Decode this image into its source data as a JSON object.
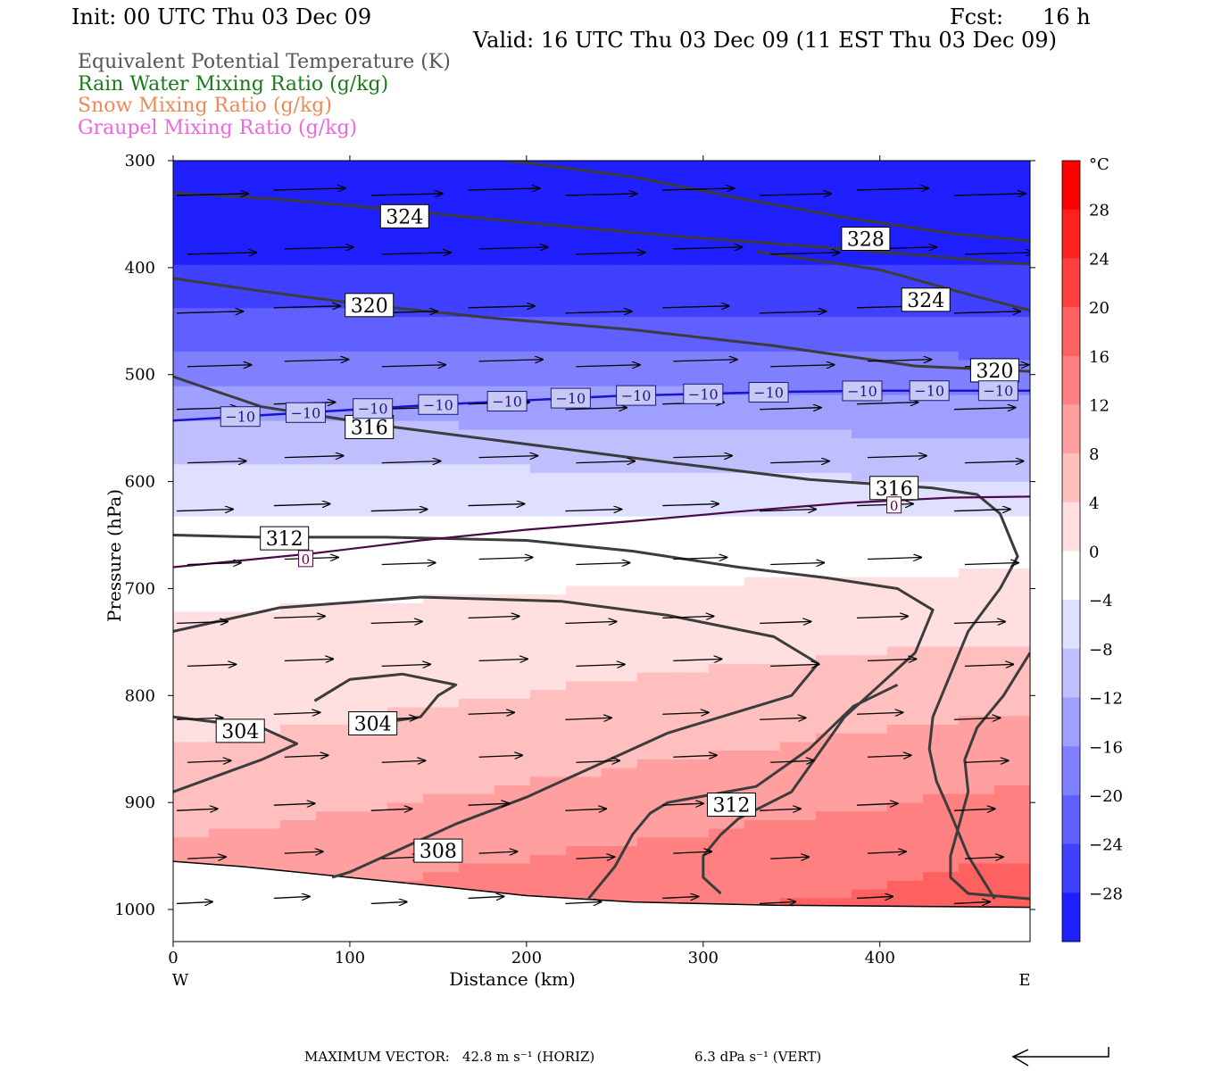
{
  "header": {
    "init": "Init: 00 UTC Thu 03 Dec 09",
    "fcst_label": "Fcst:",
    "fcst_value": "16 h",
    "valid": "Valid: 16 UTC Thu 03 Dec 09 (11 EST Thu 03 Dec 09)"
  },
  "fields": [
    {
      "name": "Equivalent Potential Temperature (K)",
      "color": "#555555"
    },
    {
      "name": "Rain Water Mixing Ratio (g/kg)",
      "color": "#1a7a1a"
    },
    {
      "name": "Snow Mixing Ratio (g/kg)",
      "color": "#ee8a55"
    },
    {
      "name": "Graupel Mixing Ratio (g/kg)",
      "color": "#ee66dd"
    }
  ],
  "chart_data": {
    "type": "cross-section",
    "xlabel": "Distance (km)",
    "ylabel": "Pressure (hPa)",
    "xlim": [
      0,
      485
    ],
    "ylim": [
      1030,
      300
    ],
    "x_ticks": [
      "0",
      "100",
      "200",
      "300",
      "400"
    ],
    "x_tick_values": [
      0,
      100,
      200,
      300,
      400
    ],
    "y_ticks": [
      "300",
      "400",
      "500",
      "600",
      "700",
      "800",
      "900",
      "1000"
    ],
    "y_tick_values": [
      300,
      400,
      500,
      600,
      700,
      800,
      900,
      1000
    ],
    "west_label": "W",
    "east_label": "E",
    "colorbar": {
      "unit": "°C",
      "labels": [
        "28",
        "24",
        "20",
        "16",
        "12",
        "8",
        "4",
        "0",
        "−4",
        "−8",
        "−12",
        "−16",
        "−20",
        "−24",
        "−28"
      ],
      "values": [
        28,
        24,
        20,
        16,
        12,
        8,
        4,
        0,
        -4,
        -8,
        -12,
        -16,
        -20,
        -24,
        -28
      ],
      "range": [
        -32,
        32
      ],
      "cold_color": "#0000ff",
      "warm_color": "#ff0000"
    },
    "temperature_field": {
      "pressure": [
        300,
        350,
        400,
        450,
        500,
        550,
        600,
        650,
        700,
        750,
        800,
        850,
        900,
        950,
        1000
      ],
      "temp_c_west": [
        -30,
        -29,
        -26,
        -21,
        -15,
        -9,
        -4,
        -1,
        1,
        3,
        4,
        6,
        8,
        11,
        14
      ],
      "temp_c_east": [
        -30,
        -29,
        -26,
        -22,
        -16,
        -11,
        -6,
        0,
        3,
        6,
        9,
        12,
        15,
        18,
        20
      ]
    },
    "theta_e_contours": [
      {
        "label": "324",
        "points": [
          [
            0,
            330
          ],
          [
            60,
            336
          ],
          [
            120,
            345
          ],
          [
            200,
            358
          ],
          [
            280,
            370
          ],
          [
            360,
            380
          ],
          [
            420,
            388
          ],
          [
            485,
            397
          ]
        ]
      },
      {
        "label": "328",
        "points": [
          [
            190,
            300
          ],
          [
            260,
            315
          ],
          [
            320,
            335
          ],
          [
            380,
            353
          ],
          [
            440,
            368
          ],
          [
            485,
            375
          ]
        ]
      },
      {
        "label": "320",
        "points": [
          [
            0,
            410
          ],
          [
            50,
            422
          ],
          [
            110,
            435
          ],
          [
            180,
            447
          ],
          [
            260,
            458
          ],
          [
            340,
            473
          ],
          [
            420,
            492
          ],
          [
            485,
            497
          ]
        ]
      },
      {
        "label": "324",
        "points": [
          [
            330,
            385
          ],
          [
            400,
            402
          ],
          [
            450,
            425
          ],
          [
            485,
            440
          ]
        ]
      },
      {
        "label": "316",
        "points": [
          [
            0,
            502
          ],
          [
            50,
            530
          ],
          [
            120,
            548
          ],
          [
            200,
            565
          ],
          [
            280,
            582
          ],
          [
            360,
            598
          ],
          [
            430,
            606
          ],
          [
            455,
            612
          ],
          [
            468,
            630
          ],
          [
            478,
            670
          ],
          [
            468,
            700
          ],
          [
            450,
            740
          ],
          [
            440,
            780
          ],
          [
            430,
            820
          ],
          [
            428,
            850
          ],
          [
            432,
            880
          ],
          [
            440,
            910
          ],
          [
            450,
            950
          ],
          [
            465,
            990
          ]
        ]
      },
      {
        "label": "312",
        "points": [
          [
            0,
            650
          ],
          [
            50,
            652
          ],
          [
            120,
            652
          ],
          [
            200,
            655
          ],
          [
            260,
            665
          ],
          [
            320,
            680
          ],
          [
            370,
            690
          ],
          [
            410,
            700
          ],
          [
            430,
            720
          ],
          [
            420,
            760
          ],
          [
            400,
            790
          ],
          [
            380,
            820
          ],
          [
            365,
            855
          ],
          [
            350,
            890
          ],
          [
            320,
            915
          ],
          [
            310,
            930
          ],
          [
            300,
            950
          ],
          [
            300,
            970
          ],
          [
            310,
            985
          ]
        ]
      },
      {
        "label": "308",
        "points": [
          [
            0,
            740
          ],
          [
            60,
            718
          ],
          [
            140,
            708
          ],
          [
            220,
            712
          ],
          [
            280,
            725
          ],
          [
            340,
            745
          ],
          [
            365,
            770
          ],
          [
            350,
            800
          ],
          [
            320,
            815
          ],
          [
            280,
            835
          ],
          [
            240,
            865
          ],
          [
            200,
            895
          ],
          [
            160,
            920
          ],
          [
            120,
            950
          ],
          [
            100,
            965
          ],
          [
            90,
            970
          ]
        ]
      },
      {
        "label": "308",
        "points": [
          [
            485,
            760
          ],
          [
            470,
            800
          ],
          [
            455,
            830
          ],
          [
            448,
            860
          ],
          [
            450,
            890
          ],
          [
            445,
            920
          ],
          [
            440,
            950
          ],
          [
            440,
            970
          ],
          [
            450,
            985
          ],
          [
            485,
            990
          ]
        ]
      },
      {
        "label": "304",
        "points": [
          [
            0,
            820
          ],
          [
            50,
            830
          ],
          [
            70,
            845
          ],
          [
            50,
            860
          ],
          [
            0,
            890
          ]
        ]
      },
      {
        "label": "304",
        "points": [
          [
            100,
            830
          ],
          [
            140,
            820
          ],
          [
            150,
            800
          ],
          [
            160,
            790
          ],
          [
            130,
            780
          ],
          [
            100,
            785
          ],
          [
            80,
            805
          ]
        ]
      },
      {
        "label": "312",
        "points": [
          [
            235,
            990
          ],
          [
            250,
            960
          ],
          [
            260,
            930
          ],
          [
            270,
            910
          ],
          [
            280,
            900
          ],
          [
            330,
            885
          ],
          [
            360,
            850
          ],
          [
            385,
            810
          ],
          [
            410,
            790
          ]
        ]
      }
    ],
    "theta_e_labels": [
      {
        "text": "324",
        "x": 131,
        "p": 352
      },
      {
        "text": "328",
        "x": 392,
        "p": 373
      },
      {
        "text": "320",
        "x": 111,
        "p": 435
      },
      {
        "text": "324",
        "x": 426,
        "p": 430
      },
      {
        "text": "320",
        "x": 465,
        "p": 496
      },
      {
        "text": "316",
        "x": 111,
        "p": 549
      },
      {
        "text": "316",
        "x": 408,
        "p": 606
      },
      {
        "text": "312",
        "x": 63,
        "p": 653
      },
      {
        "text": "304",
        "x": 38,
        "p": 833
      },
      {
        "text": "304",
        "x": 113,
        "p": 826
      },
      {
        "text": "312",
        "x": 316,
        "p": 902
      },
      {
        "text": "308",
        "x": 150,
        "p": 945
      }
    ],
    "isotherm_minus10": {
      "label": "−10",
      "points": [
        [
          0,
          543
        ],
        [
          50,
          538
        ],
        [
          100,
          533
        ],
        [
          150,
          528
        ],
        [
          200,
          524
        ],
        [
          250,
          520
        ],
        [
          300,
          518
        ],
        [
          350,
          516
        ],
        [
          400,
          515
        ],
        [
          485,
          515
        ]
      ],
      "label_x": [
        38,
        75,
        113,
        150,
        189,
        225,
        262,
        300,
        337,
        390,
        428,
        467
      ]
    },
    "isotherm_zero": {
      "label": "0",
      "points": [
        [
          0,
          680
        ],
        [
          80,
          667
        ],
        [
          140,
          655
        ],
        [
          200,
          645
        ],
        [
          260,
          637
        ],
        [
          320,
          628
        ],
        [
          380,
          620
        ],
        [
          440,
          615
        ],
        [
          485,
          614
        ]
      ],
      "label_x": [
        75,
        408
      ]
    },
    "ground_line": [
      [
        0,
        955
      ],
      [
        40,
        960
      ],
      [
        100,
        970
      ],
      [
        160,
        980
      ],
      [
        200,
        987
      ],
      [
        260,
        993
      ],
      [
        340,
        996
      ],
      [
        485,
        998
      ]
    ],
    "wind_vectors": {
      "rows": [
        330,
        385,
        440,
        490,
        530,
        580,
        625,
        675,
        730,
        770,
        820,
        860,
        905,
        950,
        992
      ],
      "x": [
        0,
        55,
        110,
        165,
        220,
        275,
        330,
        385,
        440
      ],
      "u_top": 1.0,
      "u_bottom": 0.5
    },
    "max_vector": {
      "label": "MAXIMUM VECTOR:",
      "horiz": "42.8 m s⁻¹ (HORIZ)",
      "vert": "6.3 dPa s⁻¹ (VERT)"
    }
  }
}
